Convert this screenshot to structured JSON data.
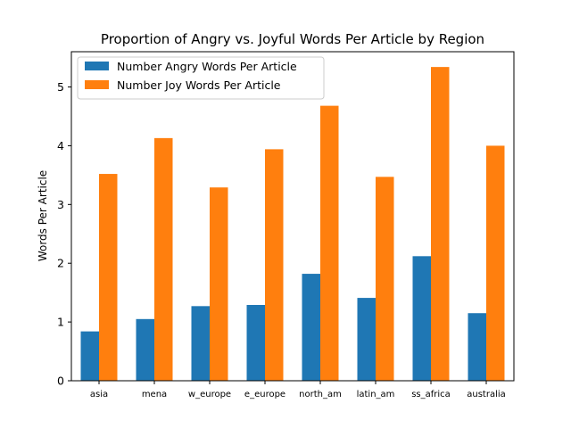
{
  "chart_data": {
    "type": "bar",
    "title": "Proportion of Angry vs. Joyful Words Per Article by Region",
    "xlabel": "",
    "ylabel": "Words Per Article",
    "categories": [
      "asia",
      "mena",
      "w_europe",
      "e_europe",
      "north_am",
      "latin_am",
      "ss_africa",
      "australia"
    ],
    "series": [
      {
        "name": "Number Angry Words Per Article",
        "color": "#1f77b4",
        "values": [
          0.84,
          1.05,
          1.27,
          1.29,
          1.82,
          1.41,
          2.12,
          1.15
        ]
      },
      {
        "name": "Number Joy Words Per Article",
        "color": "#ff7f0e",
        "values": [
          3.52,
          4.13,
          3.29,
          3.94,
          4.68,
          3.47,
          5.34,
          4.0
        ]
      }
    ],
    "ylim": [
      0,
      5.6
    ],
    "yticks": [
      0,
      1,
      2,
      3,
      4,
      5
    ],
    "grid": false,
    "legend_position": "top-left"
  }
}
